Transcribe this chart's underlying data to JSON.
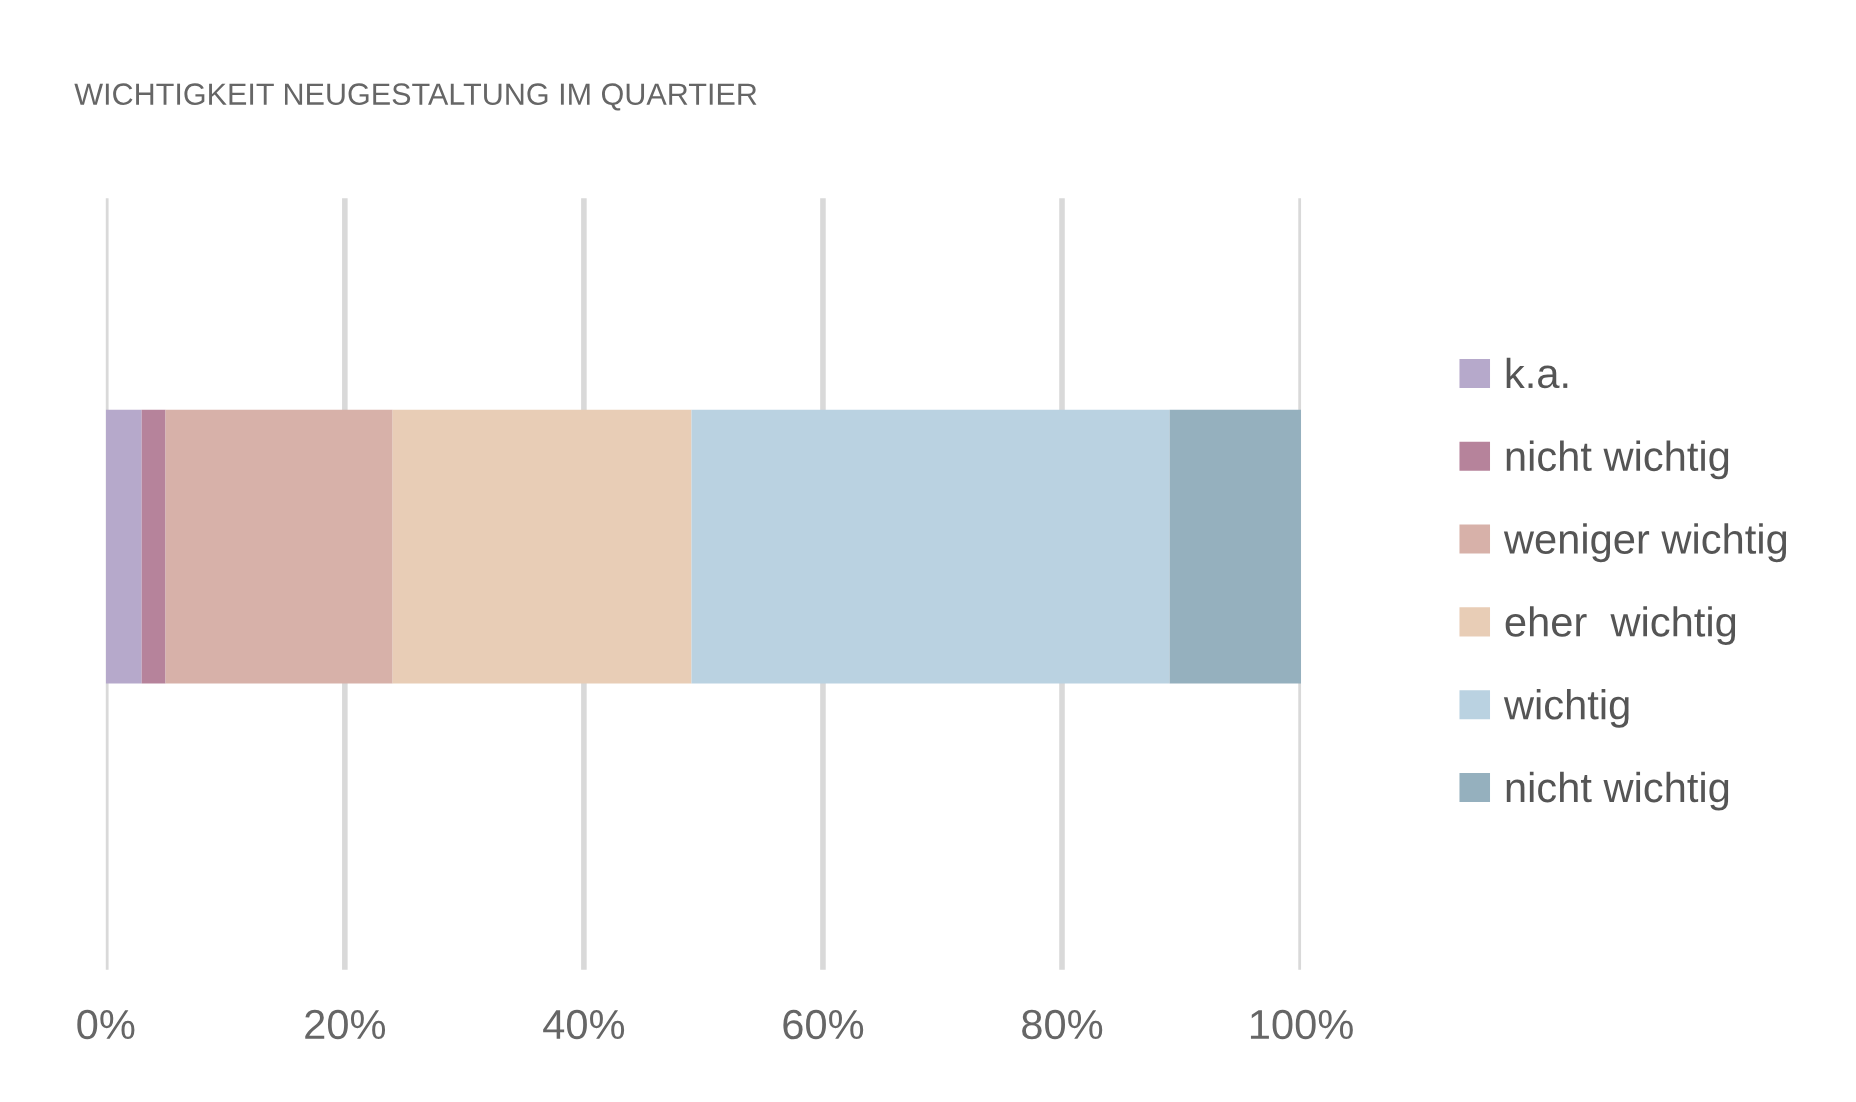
{
  "chart_data": {
    "type": "bar",
    "title": "WICHTIGKEIT NEUGESTALTUNG IM QUARTIER",
    "orientation": "horizontal",
    "stacked": true,
    "categories": [
      null
    ],
    "series": [
      {
        "name": "k.a.",
        "color": "#b6a9cb",
        "values": [
          3
        ]
      },
      {
        "name": "nicht wichtig",
        "color": "#b6839b",
        "values": [
          2
        ]
      },
      {
        "name": "weniger wichtig",
        "color": "#d7b1a9",
        "values": [
          19
        ]
      },
      {
        "name": "eher  wichtig",
        "color": "#e8cdb6",
        "values": [
          25
        ]
      },
      {
        "name": "wichtig",
        "color": "#bad2e1",
        "values": [
          40
        ]
      },
      {
        "name": "nicht wichtig",
        "color": "#95b0be",
        "values": [
          11
        ]
      }
    ],
    "xlim": [
      0,
      100
    ],
    "xticks": [
      {
        "value": 0,
        "label": "0%"
      },
      {
        "value": 20,
        "label": "20%"
      },
      {
        "value": 40,
        "label": "40%"
      },
      {
        "value": 60,
        "label": "60%"
      },
      {
        "value": 80,
        "label": "80%"
      },
      {
        "value": 100,
        "label": "100%"
      }
    ],
    "grid": "x",
    "legend": "right"
  }
}
